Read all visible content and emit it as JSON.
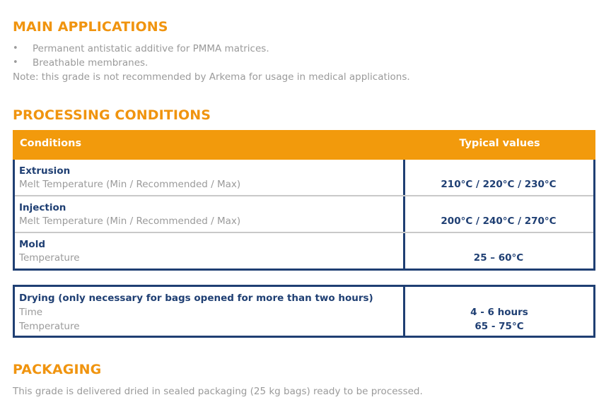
{
  "main_applications": {
    "heading": "MAIN APPLICATIONS",
    "bullets": [
      "Permanent antistatic additive for PMMA matrices.",
      "Breathable membranes."
    ],
    "bullet_symbol": "•",
    "note": "Note: this grade is not recommended by Arkema for usage in medical applications."
  },
  "processing_conditions": {
    "heading": "PROCESSING CONDITIONS",
    "header": {
      "conditions": "Conditions",
      "typical_values": "Typical values"
    },
    "rows": [
      {
        "title": "Extrusion",
        "sub": "Melt Temperature (Min / Recommended / Max)",
        "value": "210°C / 220°C / 230°C"
      },
      {
        "title": "Injection",
        "sub": "Melt Temperature (Min / Recommended / Max)",
        "value": "200°C / 240°C / 270°C"
      },
      {
        "title": "Mold",
        "sub": "Temperature",
        "value": "25 – 60°C"
      }
    ]
  },
  "drying": {
    "title": "Drying (only necessary for bags opened for more than two hours)",
    "rows": [
      {
        "label": "Time",
        "value": "4 - 6 hours"
      },
      {
        "label": "Temperature",
        "value": "65 - 75°C"
      }
    ]
  },
  "packaging": {
    "heading": "PACKAGING",
    "text": "This grade is delivered dried in sealed packaging (25 kg bags) ready to be processed."
  },
  "colors": {
    "accent": "#f29a0c",
    "navy": "#1f3f73",
    "grey_text": "#9a9a9a"
  }
}
